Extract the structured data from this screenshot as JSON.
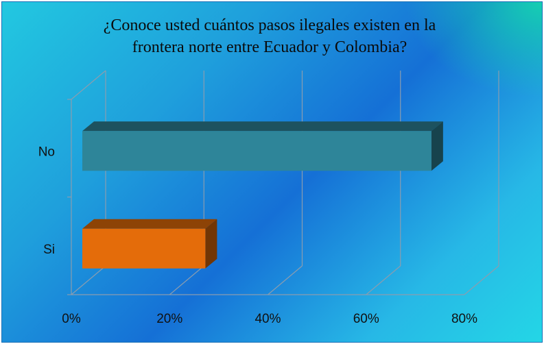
{
  "chart_data": {
    "type": "bar",
    "orientation": "horizontal",
    "title_lines": [
      "¿Conoce usted cuántos pasos ilegales existen en la",
      "frontera  norte entre Ecuador y Colombia?"
    ],
    "categories": [
      "No",
      "Si"
    ],
    "values": [
      0.73,
      0.27
    ],
    "colors": [
      "#2e8599",
      "#e46c0a"
    ],
    "xlim": [
      0,
      0.8
    ],
    "x_ticks": [
      "0%",
      "20%",
      "40%",
      "60%",
      "80%"
    ],
    "grid": true,
    "legend": "none"
  }
}
